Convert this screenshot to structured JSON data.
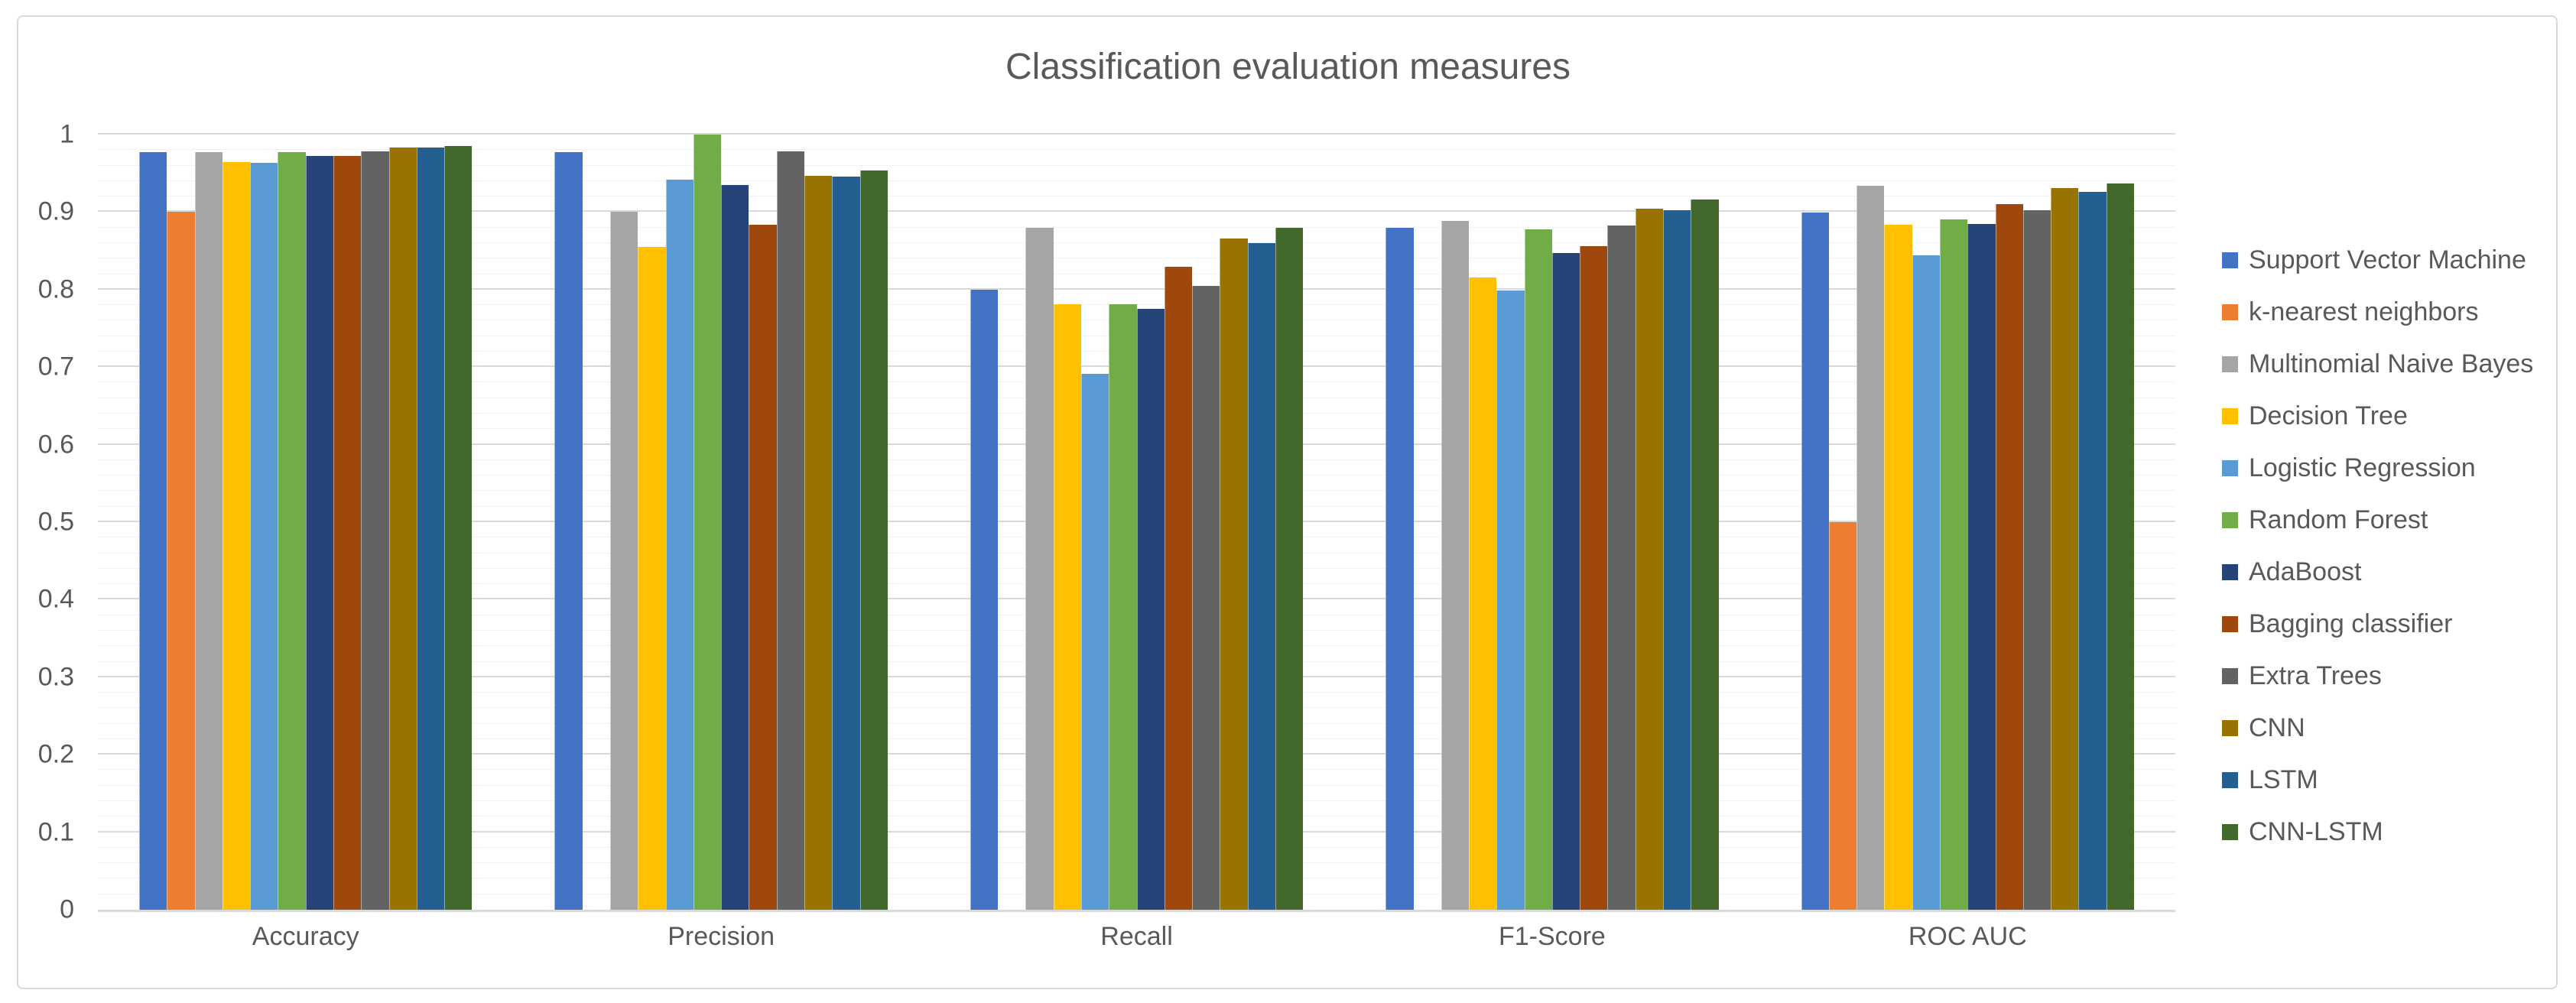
{
  "title": "Classification evaluation measures",
  "chart_data": {
    "type": "bar",
    "title": "Classification evaluation measures",
    "categories": [
      "Accuracy",
      "Precision",
      "Recall",
      "F1-Score",
      "ROC AUC"
    ],
    "series": [
      {
        "name": "Support Vector Machine",
        "color": "#4472C4",
        "values": [
          0.977,
          0.977,
          0.8,
          0.88,
          0.899
        ]
      },
      {
        "name": "k-nearest neighbors",
        "color": "#ED7D31",
        "values": [
          0.9,
          0,
          0,
          0,
          0.5
        ]
      },
      {
        "name": "Multinomial Naive Bayes",
        "color": "#A5A5A5",
        "values": [
          0.977,
          0.9,
          0.88,
          0.889,
          0.934
        ]
      },
      {
        "name": "Decision Tree",
        "color": "#FFC000",
        "values": [
          0.965,
          0.855,
          0.781,
          0.816,
          0.884
        ]
      },
      {
        "name": "Logistic Regression",
        "color": "#5B9BD5",
        "values": [
          0.964,
          0.942,
          0.691,
          0.799,
          0.844
        ]
      },
      {
        "name": "Random Forest",
        "color": "#70AD47",
        "values": [
          0.977,
          1.0,
          0.781,
          0.878,
          0.891
        ]
      },
      {
        "name": "AdaBoost",
        "color": "#264478",
        "values": [
          0.972,
          0.935,
          0.775,
          0.847,
          0.885
        ]
      },
      {
        "name": "Bagging classifier",
        "color": "#9E480E",
        "values": [
          0.972,
          0.884,
          0.829,
          0.856,
          0.91
        ]
      },
      {
        "name": "Extra Trees",
        "color": "#636363",
        "values": [
          0.978,
          0.978,
          0.805,
          0.883,
          0.902
        ]
      },
      {
        "name": "CNN",
        "color": "#997300",
        "values": [
          0.983,
          0.947,
          0.866,
          0.904,
          0.931
        ]
      },
      {
        "name": "LSTM",
        "color": "#255E91",
        "values": [
          0.983,
          0.946,
          0.86,
          0.902,
          0.926
        ]
      },
      {
        "name": "CNN-LSTM",
        "color": "#43682B",
        "values": [
          0.985,
          0.954,
          0.88,
          0.916,
          0.937
        ]
      }
    ],
    "ylim": [
      0,
      1
    ],
    "y_tick_labels": [
      "0",
      "0.1",
      "0.2",
      "0.3",
      "0.4",
      "0.5",
      "0.6",
      "0.7",
      "0.8",
      "0.9",
      "1"
    ],
    "grid": {
      "orientation": "horizontal",
      "major_interval": 0.1,
      "minor_interval": 0.02
    },
    "legend_position": "right"
  },
  "colors": {
    "text": "#595959",
    "grid_major": "#D9D9D9",
    "grid_minor": "#F2F2F2",
    "axis_line": "#D9D9D9",
    "card_border": "#D9D9D9",
    "background": "#FFFFFF"
  }
}
